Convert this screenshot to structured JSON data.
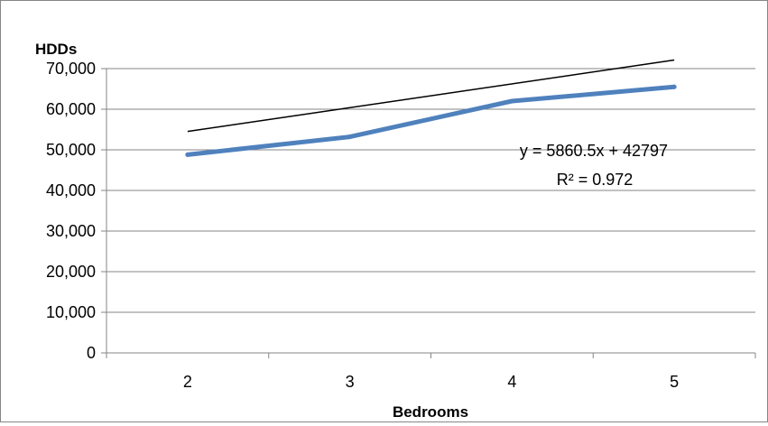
{
  "chart_data": {
    "type": "line",
    "ylabel": "HDDs",
    "xlabel": "Bedrooms",
    "categories": [
      "2",
      "3",
      "4",
      "5"
    ],
    "x": [
      2,
      3,
      4,
      5
    ],
    "series": [
      {
        "values": [
          48800,
          53200,
          62000,
          65500
        ],
        "color": "#4f81bd"
      }
    ],
    "trendline": {
      "type": "linear",
      "slope": 5860.5,
      "intercept": 42797,
      "color": "#000000",
      "equation_label": "y = 5860.5x + 42797",
      "r2_label": "R² = 0.972"
    },
    "ylim": [
      0,
      70000
    ],
    "yticks": [
      0,
      10000,
      20000,
      30000,
      40000,
      50000,
      60000,
      70000
    ],
    "ytick_labels": [
      "0",
      "10,000",
      "20,000",
      "30,000",
      "40,000",
      "50,000",
      "60,000",
      "70,000"
    ],
    "grid": true,
    "legend": "none"
  }
}
